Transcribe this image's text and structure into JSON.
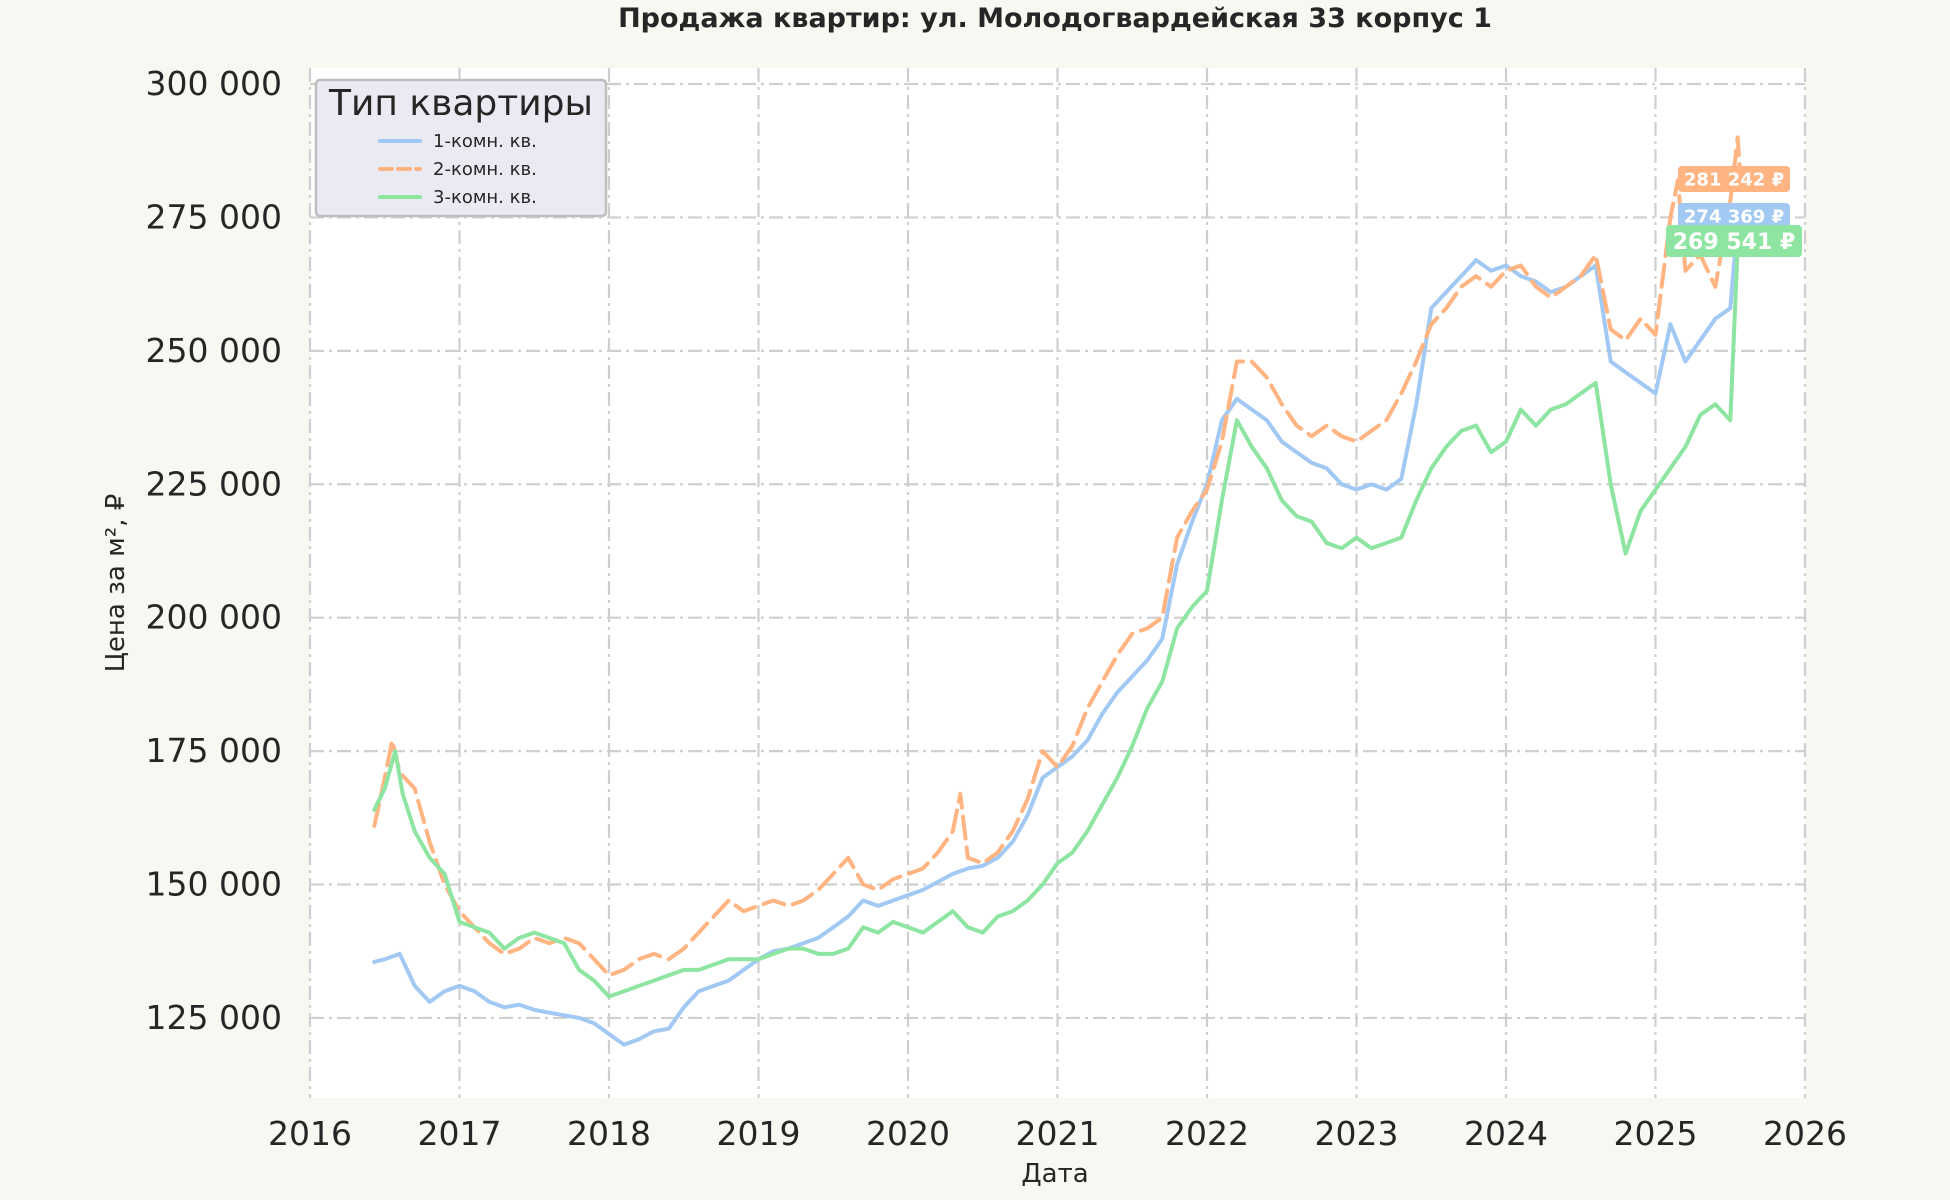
{
  "chart_data": {
    "type": "line",
    "title": "Продажа квартир: ул. Молодогвардейская 33 корпус 1",
    "xlabel": "Дата",
    "ylabel": "Цена за м², ₽",
    "xlim": [
      2016.0,
      2026.0
    ],
    "ylim": [
      110000,
      303000
    ],
    "x_ticks": [
      2016,
      2017,
      2018,
      2019,
      2020,
      2021,
      2022,
      2023,
      2024,
      2025,
      2026
    ],
    "x_tick_labels": [
      "2016",
      "2017",
      "2018",
      "2019",
      "2020",
      "2021",
      "2022",
      "2023",
      "2024",
      "2025",
      "2026"
    ],
    "y_ticks": [
      125000,
      150000,
      175000,
      200000,
      225000,
      250000,
      275000,
      300000
    ],
    "y_tick_labels": [
      "125 000",
      "150 000",
      "175 000",
      "200 000",
      "225 000",
      "250 000",
      "275 000",
      "300 000"
    ],
    "grid": true,
    "legend": {
      "title": "Тип квартиры",
      "placement": "top-left"
    },
    "series": [
      {
        "name": "1-комн. кв.",
        "color": "#a1c9f4",
        "dash": "solid",
        "end_label": "274 369 ₽",
        "points": [
          [
            2016.43,
            135500
          ],
          [
            2016.5,
            136000
          ],
          [
            2016.6,
            137000
          ],
          [
            2016.7,
            131000
          ],
          [
            2016.8,
            128000
          ],
          [
            2016.9,
            130000
          ],
          [
            2017.0,
            131000
          ],
          [
            2017.1,
            130000
          ],
          [
            2017.2,
            128000
          ],
          [
            2017.3,
            127000
          ],
          [
            2017.4,
            127500
          ],
          [
            2017.5,
            126500
          ],
          [
            2017.6,
            126000
          ],
          [
            2017.7,
            125500
          ],
          [
            2017.8,
            125000
          ],
          [
            2017.9,
            124000
          ],
          [
            2018.0,
            122000
          ],
          [
            2018.1,
            120000
          ],
          [
            2018.2,
            121000
          ],
          [
            2018.3,
            122500
          ],
          [
            2018.4,
            123000
          ],
          [
            2018.5,
            127000
          ],
          [
            2018.6,
            130000
          ],
          [
            2018.7,
            131000
          ],
          [
            2018.8,
            132000
          ],
          [
            2018.9,
            134000
          ],
          [
            2019.0,
            136000
          ],
          [
            2019.1,
            137500
          ],
          [
            2019.2,
            138000
          ],
          [
            2019.3,
            139000
          ],
          [
            2019.4,
            140000
          ],
          [
            2019.5,
            142000
          ],
          [
            2019.6,
            144000
          ],
          [
            2019.7,
            147000
          ],
          [
            2019.8,
            146000
          ],
          [
            2019.9,
            147000
          ],
          [
            2020.0,
            148000
          ],
          [
            2020.1,
            149000
          ],
          [
            2020.2,
            150500
          ],
          [
            2020.3,
            152000
          ],
          [
            2020.4,
            153000
          ],
          [
            2020.5,
            153500
          ],
          [
            2020.6,
            155000
          ],
          [
            2020.7,
            158000
          ],
          [
            2020.8,
            163000
          ],
          [
            2020.9,
            170000
          ],
          [
            2021.0,
            172000
          ],
          [
            2021.1,
            174000
          ],
          [
            2021.2,
            177000
          ],
          [
            2021.3,
            182000
          ],
          [
            2021.4,
            186000
          ],
          [
            2021.5,
            189000
          ],
          [
            2021.6,
            192000
          ],
          [
            2021.7,
            196000
          ],
          [
            2021.8,
            210000
          ],
          [
            2021.9,
            218000
          ],
          [
            2022.0,
            225000
          ],
          [
            2022.1,
            237000
          ],
          [
            2022.2,
            241000
          ],
          [
            2022.3,
            239000
          ],
          [
            2022.4,
            237000
          ],
          [
            2022.5,
            233000
          ],
          [
            2022.6,
            231000
          ],
          [
            2022.7,
            229000
          ],
          [
            2022.8,
            228000
          ],
          [
            2022.9,
            225000
          ],
          [
            2023.0,
            224000
          ],
          [
            2023.1,
            225000
          ],
          [
            2023.2,
            224000
          ],
          [
            2023.3,
            226000
          ],
          [
            2023.4,
            240000
          ],
          [
            2023.5,
            258000
          ],
          [
            2023.6,
            261000
          ],
          [
            2023.7,
            264000
          ],
          [
            2023.8,
            267000
          ],
          [
            2023.9,
            265000
          ],
          [
            2024.0,
            266000
          ],
          [
            2024.1,
            264000
          ],
          [
            2024.2,
            263000
          ],
          [
            2024.3,
            261000
          ],
          [
            2024.4,
            262000
          ],
          [
            2024.5,
            264000
          ],
          [
            2024.6,
            266000
          ],
          [
            2024.7,
            248000
          ],
          [
            2024.8,
            246000
          ],
          [
            2024.9,
            244000
          ],
          [
            2025.0,
            242000
          ],
          [
            2025.1,
            255000
          ],
          [
            2025.2,
            248000
          ],
          [
            2025.3,
            252000
          ],
          [
            2025.4,
            256000
          ],
          [
            2025.5,
            258000
          ],
          [
            2025.55,
            274369
          ]
        ]
      },
      {
        "name": "2-комн. кв.",
        "color": "#ffb482",
        "dash": "dashed",
        "end_label": "281 242 ₽",
        "points": [
          [
            2016.43,
            161000
          ],
          [
            2016.5,
            170000
          ],
          [
            2016.55,
            177000
          ],
          [
            2016.6,
            171000
          ],
          [
            2016.7,
            168000
          ],
          [
            2016.8,
            158000
          ],
          [
            2016.9,
            150000
          ],
          [
            2017.0,
            145000
          ],
          [
            2017.1,
            142000
          ],
          [
            2017.2,
            139000
          ],
          [
            2017.3,
            137000
          ],
          [
            2017.4,
            138000
          ],
          [
            2017.5,
            140000
          ],
          [
            2017.6,
            139000
          ],
          [
            2017.7,
            140000
          ],
          [
            2017.8,
            139000
          ],
          [
            2017.9,
            136000
          ],
          [
            2018.0,
            133000
          ],
          [
            2018.1,
            134000
          ],
          [
            2018.2,
            136000
          ],
          [
            2018.3,
            137000
          ],
          [
            2018.4,
            136000
          ],
          [
            2018.5,
            138000
          ],
          [
            2018.6,
            141000
          ],
          [
            2018.7,
            144000
          ],
          [
            2018.8,
            147000
          ],
          [
            2018.9,
            145000
          ],
          [
            2019.0,
            146000
          ],
          [
            2019.1,
            147000
          ],
          [
            2019.2,
            146000
          ],
          [
            2019.3,
            147000
          ],
          [
            2019.4,
            149000
          ],
          [
            2019.5,
            152000
          ],
          [
            2019.6,
            155000
          ],
          [
            2019.7,
            150000
          ],
          [
            2019.8,
            149000
          ],
          [
            2019.9,
            151000
          ],
          [
            2020.0,
            152000
          ],
          [
            2020.1,
            153000
          ],
          [
            2020.2,
            156000
          ],
          [
            2020.3,
            160000
          ],
          [
            2020.35,
            167000
          ],
          [
            2020.4,
            155000
          ],
          [
            2020.5,
            154000
          ],
          [
            2020.6,
            156000
          ],
          [
            2020.7,
            160000
          ],
          [
            2020.8,
            166000
          ],
          [
            2020.9,
            175000
          ],
          [
            2021.0,
            172000
          ],
          [
            2021.1,
            176000
          ],
          [
            2021.2,
            183000
          ],
          [
            2021.3,
            188000
          ],
          [
            2021.4,
            193000
          ],
          [
            2021.5,
            197000
          ],
          [
            2021.6,
            198000
          ],
          [
            2021.7,
            200000
          ],
          [
            2021.8,
            215000
          ],
          [
            2021.9,
            220000
          ],
          [
            2022.0,
            224000
          ],
          [
            2022.1,
            233000
          ],
          [
            2022.2,
            248000
          ],
          [
            2022.3,
            248000
          ],
          [
            2022.4,
            245000
          ],
          [
            2022.5,
            240000
          ],
          [
            2022.6,
            236000
          ],
          [
            2022.7,
            234000
          ],
          [
            2022.8,
            236000
          ],
          [
            2022.9,
            234000
          ],
          [
            2023.0,
            233000
          ],
          [
            2023.1,
            235000
          ],
          [
            2023.2,
            237000
          ],
          [
            2023.3,
            242000
          ],
          [
            2023.4,
            248000
          ],
          [
            2023.5,
            255000
          ],
          [
            2023.6,
            258000
          ],
          [
            2023.7,
            262000
          ],
          [
            2023.8,
            264000
          ],
          [
            2023.9,
            262000
          ],
          [
            2024.0,
            265000
          ],
          [
            2024.1,
            266000
          ],
          [
            2024.2,
            262000
          ],
          [
            2024.3,
            260000
          ],
          [
            2024.4,
            262000
          ],
          [
            2024.5,
            264000
          ],
          [
            2024.6,
            268000
          ],
          [
            2024.7,
            254000
          ],
          [
            2024.8,
            252000
          ],
          [
            2024.9,
            256000
          ],
          [
            2025.0,
            253000
          ],
          [
            2025.1,
            275000
          ],
          [
            2025.15,
            282000
          ],
          [
            2025.2,
            265000
          ],
          [
            2025.3,
            268000
          ],
          [
            2025.4,
            262000
          ],
          [
            2025.5,
            278000
          ],
          [
            2025.55,
            290000
          ],
          [
            2025.57,
            281242
          ]
        ]
      },
      {
        "name": "3-комн. кв.",
        "color": "#8de5a1",
        "dash": "solid",
        "end_label": "269 541 ₽",
        "points": [
          [
            2016.43,
            164000
          ],
          [
            2016.5,
            168000
          ],
          [
            2016.57,
            175000
          ],
          [
            2016.62,
            167000
          ],
          [
            2016.7,
            160000
          ],
          [
            2016.8,
            155000
          ],
          [
            2016.9,
            152000
          ],
          [
            2017.0,
            143000
          ],
          [
            2017.1,
            142000
          ],
          [
            2017.2,
            141000
          ],
          [
            2017.3,
            138000
          ],
          [
            2017.4,
            140000
          ],
          [
            2017.5,
            141000
          ],
          [
            2017.6,
            140000
          ],
          [
            2017.7,
            139000
          ],
          [
            2017.8,
            134000
          ],
          [
            2017.9,
            132000
          ],
          [
            2018.0,
            129000
          ],
          [
            2018.1,
            130000
          ],
          [
            2018.2,
            131000
          ],
          [
            2018.3,
            132000
          ],
          [
            2018.4,
            133000
          ],
          [
            2018.5,
            134000
          ],
          [
            2018.6,
            134000
          ],
          [
            2018.7,
            135000
          ],
          [
            2018.8,
            136000
          ],
          [
            2018.9,
            136000
          ],
          [
            2019.0,
            136000
          ],
          [
            2019.1,
            137000
          ],
          [
            2019.2,
            138000
          ],
          [
            2019.3,
            138000
          ],
          [
            2019.4,
            137000
          ],
          [
            2019.5,
            137000
          ],
          [
            2019.6,
            138000
          ],
          [
            2019.7,
            142000
          ],
          [
            2019.8,
            141000
          ],
          [
            2019.9,
            143000
          ],
          [
            2020.0,
            142000
          ],
          [
            2020.1,
            141000
          ],
          [
            2020.2,
            143000
          ],
          [
            2020.3,
            145000
          ],
          [
            2020.4,
            142000
          ],
          [
            2020.5,
            141000
          ],
          [
            2020.6,
            144000
          ],
          [
            2020.7,
            145000
          ],
          [
            2020.8,
            147000
          ],
          [
            2020.9,
            150000
          ],
          [
            2021.0,
            154000
          ],
          [
            2021.1,
            156000
          ],
          [
            2021.2,
            160000
          ],
          [
            2021.3,
            165000
          ],
          [
            2021.4,
            170000
          ],
          [
            2021.5,
            176000
          ],
          [
            2021.6,
            183000
          ],
          [
            2021.7,
            188000
          ],
          [
            2021.8,
            198000
          ],
          [
            2021.9,
            202000
          ],
          [
            2022.0,
            205000
          ],
          [
            2022.1,
            222000
          ],
          [
            2022.2,
            237000
          ],
          [
            2022.3,
            232000
          ],
          [
            2022.4,
            228000
          ],
          [
            2022.5,
            222000
          ],
          [
            2022.6,
            219000
          ],
          [
            2022.7,
            218000
          ],
          [
            2022.8,
            214000
          ],
          [
            2022.9,
            213000
          ],
          [
            2023.0,
            215000
          ],
          [
            2023.1,
            213000
          ],
          [
            2023.2,
            214000
          ],
          [
            2023.3,
            215000
          ],
          [
            2023.4,
            222000
          ],
          [
            2023.5,
            228000
          ],
          [
            2023.6,
            232000
          ],
          [
            2023.7,
            235000
          ],
          [
            2023.8,
            236000
          ],
          [
            2023.9,
            231000
          ],
          [
            2024.0,
            233000
          ],
          [
            2024.1,
            239000
          ],
          [
            2024.2,
            236000
          ],
          [
            2024.3,
            239000
          ],
          [
            2024.4,
            240000
          ],
          [
            2024.5,
            242000
          ],
          [
            2024.6,
            244000
          ],
          [
            2024.7,
            225000
          ],
          [
            2024.8,
            212000
          ],
          [
            2024.9,
            220000
          ],
          [
            2025.0,
            224000
          ],
          [
            2025.1,
            228000
          ],
          [
            2025.2,
            232000
          ],
          [
            2025.3,
            238000
          ],
          [
            2025.4,
            240000
          ],
          [
            2025.5,
            237000
          ],
          [
            2025.55,
            269541
          ]
        ]
      }
    ]
  }
}
